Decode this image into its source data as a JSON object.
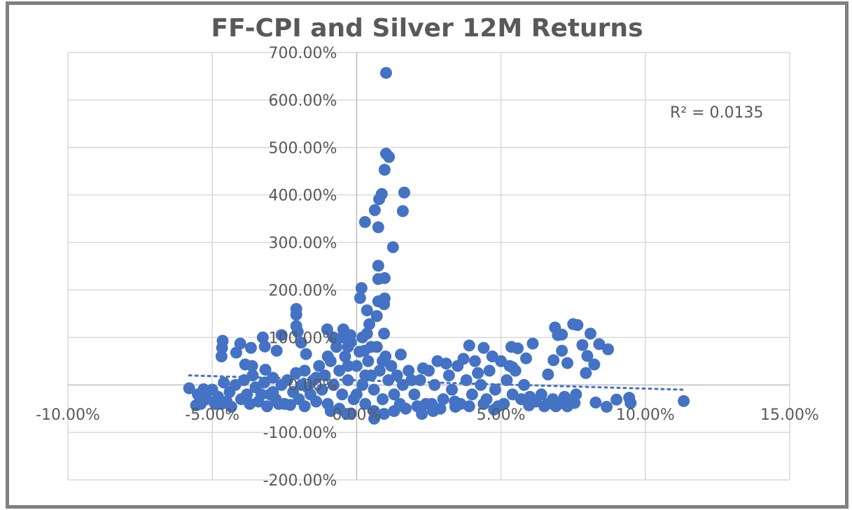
{
  "chart_data": {
    "type": "scatter",
    "title": "FF-CPI and Silver 12M Returns",
    "xlabel": "",
    "ylabel": "",
    "xlim": [
      -10,
      15
    ],
    "ylim": [
      -200,
      700
    ],
    "x_ticks": [
      -10,
      -5,
      0,
      5,
      10,
      15
    ],
    "y_ticks": [
      -200,
      -100,
      0,
      100,
      200,
      300,
      400,
      500,
      600,
      700
    ],
    "x_tick_labels": [
      "-10.00%",
      "-5.00%",
      "0.00%",
      "5.00%",
      "10.00%",
      "15.00%"
    ],
    "y_tick_labels": [
      "-200.00%",
      "-100.00%",
      "0.00%",
      "100.00%",
      "200.00%",
      "300.00%",
      "400.00%",
      "500.00%",
      "600.00%",
      "700.00%"
    ],
    "grid": true,
    "marker_color": "#4472C4",
    "trendline": {
      "type": "linear",
      "style": "dotted",
      "x_range": [
        -5.8,
        11.3
      ],
      "slope": -1.75,
      "intercept": 9.8,
      "r_squared_label": "R² = 0.0135"
    },
    "points": [
      [
        1.02,
        657
      ],
      [
        1.02,
        487
      ],
      [
        1.12,
        480
      ],
      [
        0.97,
        453
      ],
      [
        1.65,
        405
      ],
      [
        0.87,
        402
      ],
      [
        0.78,
        391
      ],
      [
        0.63,
        368
      ],
      [
        1.6,
        366
      ],
      [
        0.29,
        343
      ],
      [
        0.75,
        332
      ],
      [
        1.26,
        290
      ],
      [
        0.75,
        251
      ],
      [
        0.97,
        225
      ],
      [
        0.75,
        223
      ],
      [
        0.17,
        204
      ],
      [
        0.12,
        183
      ],
      [
        0.97,
        182
      ],
      [
        0.75,
        176
      ],
      [
        0.95,
        170
      ],
      [
        0.36,
        157
      ],
      [
        0.7,
        145
      ],
      [
        0.44,
        128
      ],
      [
        0.36,
        108
      ],
      [
        -2.09,
        160
      ],
      [
        -2.09,
        148
      ],
      [
        -2.09,
        124
      ],
      [
        -2.04,
        112
      ],
      [
        -1.92,
        89
      ],
      [
        -1.75,
        65
      ],
      [
        -2.6,
        105
      ],
      [
        -3.25,
        100
      ],
      [
        -3.18,
        81
      ],
      [
        -4.03,
        87
      ],
      [
        -4.64,
        93
      ],
      [
        -4.66,
        78
      ],
      [
        -4.68,
        60
      ],
      [
        -4.17,
        68
      ],
      [
        -3.66,
        78
      ],
      [
        -2.77,
        72
      ],
      [
        -3.86,
        43
      ],
      [
        -3.62,
        40
      ],
      [
        -3.16,
        32
      ],
      [
        -5.8,
        -7
      ],
      [
        -5.3,
        -9
      ],
      [
        -5.56,
        -43
      ],
      [
        -4.68,
        -40
      ],
      [
        -4.34,
        -46
      ],
      [
        -1.02,
        117
      ],
      [
        -0.46,
        117
      ],
      [
        -0.22,
        105
      ],
      [
        0.27,
        72
      ],
      [
        1.53,
        64
      ],
      [
        0.95,
        108
      ],
      [
        -0.34,
        -61
      ],
      [
        0.61,
        -71
      ],
      [
        0.95,
        -61
      ],
      [
        2.26,
        -61
      ],
      [
        2.65,
        -55
      ],
      [
        3.9,
        83
      ],
      [
        4.4,
        78
      ],
      [
        5.36,
        80
      ],
      [
        5.58,
        77
      ],
      [
        6.1,
        87
      ],
      [
        5.87,
        56
      ],
      [
        5.4,
        37
      ],
      [
        6.63,
        22
      ],
      [
        6.87,
        121
      ],
      [
        6.97,
        105
      ],
      [
        7.11,
        106
      ],
      [
        7.5,
        128
      ],
      [
        7.65,
        126
      ],
      [
        7.11,
        72
      ],
      [
        6.82,
        52
      ],
      [
        7.3,
        46
      ],
      [
        7.82,
        84
      ],
      [
        8.1,
        108
      ],
      [
        8.4,
        86
      ],
      [
        8.71,
        75
      ],
      [
        7.99,
        61
      ],
      [
        8.23,
        43
      ],
      [
        7.94,
        25
      ],
      [
        7.55,
        -38
      ],
      [
        8.28,
        -37
      ],
      [
        8.66,
        -46
      ],
      [
        9.0,
        -31
      ],
      [
        9.44,
        -27
      ],
      [
        9.49,
        -38
      ],
      [
        11.33,
        -34
      ],
      [
        5.97,
        -43
      ],
      [
        4.76,
        -52
      ],
      [
        3.42,
        -46
      ],
      [
        -5.5,
        -20
      ],
      [
        -5.2,
        -30
      ],
      [
        -5.0,
        -10
      ],
      [
        -4.8,
        -25
      ],
      [
        -4.6,
        5
      ],
      [
        -4.4,
        -15
      ],
      [
        -4.2,
        0
      ],
      [
        -4.0,
        -30
      ],
      [
        -3.9,
        10
      ],
      [
        -3.8,
        -20
      ],
      [
        -3.6,
        20
      ],
      [
        -3.5,
        -5
      ],
      [
        -3.4,
        -35
      ],
      [
        -3.2,
        5
      ],
      [
        -3.0,
        -20
      ],
      [
        -2.9,
        15
      ],
      [
        -2.8,
        -30
      ],
      [
        -2.6,
        0
      ],
      [
        -2.5,
        -40
      ],
      [
        -2.4,
        10
      ],
      [
        -2.2,
        -15
      ],
      [
        -2.1,
        25
      ],
      [
        -2.0,
        -30
      ],
      [
        -1.9,
        0
      ],
      [
        -1.8,
        30
      ],
      [
        -1.6,
        -20
      ],
      [
        -1.5,
        10
      ],
      [
        -1.4,
        -35
      ],
      [
        -1.3,
        40
      ],
      [
        -1.2,
        -10
      ],
      [
        -1.1,
        20
      ],
      [
        -1.0,
        -40
      ],
      [
        -0.9,
        50
      ],
      [
        -0.8,
        0
      ],
      [
        -0.7,
        80
      ],
      [
        -0.6,
        30
      ],
      [
        -0.5,
        -20
      ],
      [
        -0.4,
        60
      ],
      [
        -0.3,
        10
      ],
      [
        -0.2,
        90
      ],
      [
        -0.1,
        -30
      ],
      [
        0,
        40
      ],
      [
        0.1,
        70
      ],
      [
        0.2,
        0
      ],
      [
        0.3,
        -40
      ],
      [
        0.4,
        50
      ],
      [
        0.5,
        20
      ],
      [
        0.6,
        -10
      ],
      [
        0.7,
        80
      ],
      [
        0.8,
        30
      ],
      [
        0.9,
        -30
      ],
      [
        1.0,
        60
      ],
      [
        1.1,
        10
      ],
      [
        1.2,
        40
      ],
      [
        1.3,
        -20
      ],
      [
        1.4,
        20
      ],
      [
        1.5,
        -40
      ],
      [
        1.6,
        0
      ],
      [
        1.8,
        30
      ],
      [
        2.0,
        -20
      ],
      [
        2.2,
        10
      ],
      [
        2.4,
        -40
      ],
      [
        2.5,
        30
      ],
      [
        2.7,
        0
      ],
      [
        2.8,
        50
      ],
      [
        3.0,
        -30
      ],
      [
        3.2,
        20
      ],
      [
        3.3,
        -10
      ],
      [
        3.5,
        40
      ],
      [
        3.6,
        -40
      ],
      [
        3.8,
        10
      ],
      [
        4.0,
        -20
      ],
      [
        4.1,
        50
      ],
      [
        4.3,
        0
      ],
      [
        4.5,
        -30
      ],
      [
        4.6,
        30
      ],
      [
        4.8,
        -10
      ],
      [
        5.0,
        50
      ],
      [
        5.1,
        -40
      ],
      [
        5.2,
        10
      ],
      [
        5.4,
        -20
      ],
      [
        5.5,
        30
      ],
      [
        5.7,
        -30
      ],
      [
        5.8,
        0
      ],
      [
        6.0,
        -25
      ],
      [
        6.2,
        -35
      ],
      [
        6.4,
        -20
      ],
      [
        6.6,
        -40
      ],
      [
        6.8,
        -30
      ],
      [
        7.0,
        -40
      ],
      [
        7.2,
        -25
      ],
      [
        7.4,
        -35
      ],
      [
        7.6,
        -20
      ],
      [
        -3.7,
        -40
      ],
      [
        -3.1,
        -45
      ],
      [
        -2.3,
        -42
      ],
      [
        -1.7,
        -5
      ],
      [
        -0.6,
        -50
      ],
      [
        0.0,
        -20
      ],
      [
        1.7,
        -50
      ],
      [
        2.1,
        -45
      ],
      [
        2.9,
        -50
      ],
      [
        3.9,
        -45
      ],
      [
        4.4,
        -40
      ],
      [
        -0.5,
        100
      ],
      [
        -0.3,
        80
      ],
      [
        0.2,
        100
      ],
      [
        0.5,
        80
      ],
      [
        -1.0,
        60
      ],
      [
        -0.8,
        100
      ],
      [
        0.9,
        50
      ],
      [
        -4.9,
        -40
      ],
      [
        -5.4,
        -40
      ],
      [
        -2.7,
        -40
      ],
      [
        -1.8,
        -45
      ],
      [
        -0.9,
        -55
      ],
      [
        0.6,
        -55
      ],
      [
        1.3,
        -55
      ],
      [
        2.6,
        -40
      ],
      [
        3.4,
        -35
      ],
      [
        4.9,
        -45
      ],
      [
        6.5,
        -45
      ],
      [
        7.3,
        -45
      ],
      [
        6.9,
        -45
      ],
      [
        -0.2,
        -60
      ],
      [
        1.9,
        10
      ],
      [
        2.3,
        35
      ],
      [
        3.1,
        45
      ],
      [
        3.7,
        55
      ],
      [
        4.2,
        25
      ],
      [
        4.7,
        60
      ],
      [
        5.3,
        40
      ],
      [
        -0.3,
        40
      ],
      [
        0.3,
        20
      ],
      [
        -1.4,
        15
      ],
      [
        -2.9,
        -15
      ],
      [
        -3.3,
        -20
      ],
      [
        -4.5,
        -35
      ]
    ]
  }
}
